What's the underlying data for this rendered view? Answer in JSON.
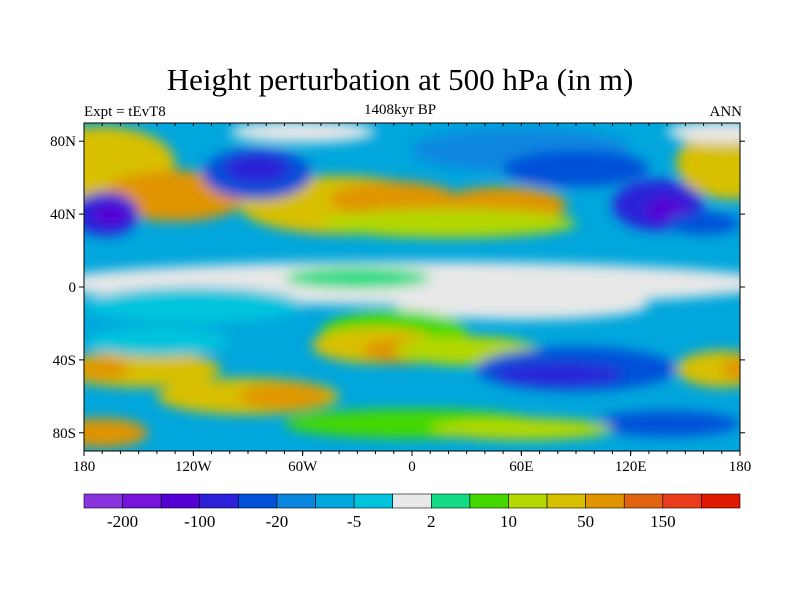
{
  "chart_data": {
    "type": "heatmap",
    "title": "Height perturbation at 500 hPa (in m)",
    "subtitle_left": "Expt = tEvT8",
    "subtitle_center": "1408kyr BP",
    "subtitle_right": "ANN",
    "x_ticks": [
      {
        "value": -180,
        "label": "180"
      },
      {
        "value": -120,
        "label": "120W"
      },
      {
        "value": -60,
        "label": "60W"
      },
      {
        "value": 0,
        "label": "0"
      },
      {
        "value": 60,
        "label": "60E"
      },
      {
        "value": 120,
        "label": "120E"
      },
      {
        "value": 180,
        "label": "180"
      }
    ],
    "y_ticks": [
      {
        "value": 80,
        "label": "80N"
      },
      {
        "value": 40,
        "label": "40N"
      },
      {
        "value": 0,
        "label": "0"
      },
      {
        "value": -40,
        "label": "40S"
      },
      {
        "value": -80,
        "label": "80S"
      }
    ],
    "xlim": [
      -180,
      180
    ],
    "ylim": [
      -90,
      90
    ],
    "colorbar": {
      "colors": [
        "#8a34e0",
        "#7414dc",
        "#5400d4",
        "#2c20d8",
        "#0050d8",
        "#0a86e0",
        "#00a6dc",
        "#00c4dc",
        "#e8e8e8",
        "#14dc84",
        "#44d800",
        "#b4d800",
        "#d8c000",
        "#e09400",
        "#e06410",
        "#ea3c1c",
        "#e01800"
      ],
      "tick_labels": [
        {
          "boundary": 1,
          "label": "-200"
        },
        {
          "boundary": 3,
          "label": "-100"
        },
        {
          "boundary": 5,
          "label": "-20"
        },
        {
          "boundary": 7,
          "label": "-5"
        },
        {
          "boundary": 9,
          "label": "2"
        },
        {
          "boundary": 11,
          "label": "10"
        },
        {
          "boundary": 13,
          "label": "50"
        },
        {
          "boundary": 15,
          "label": "150"
        }
      ]
    }
  }
}
